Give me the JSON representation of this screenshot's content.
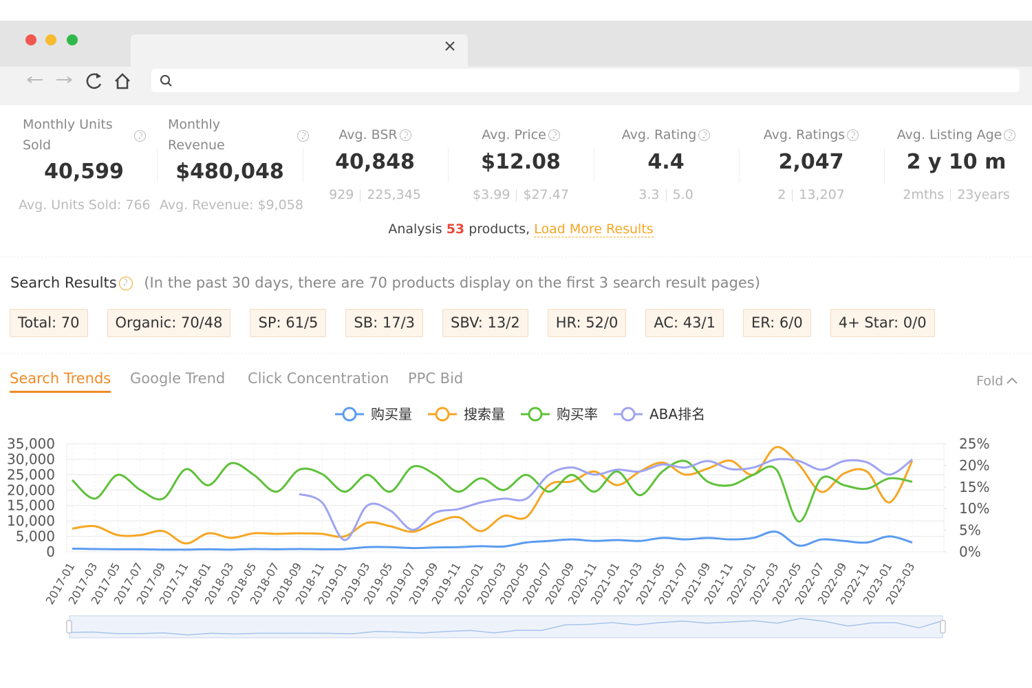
{
  "stats": [
    {
      "label": "Monthly Units Sold",
      "value": "40,599",
      "note": "Avg. Units Sold: 766"
    },
    {
      "label": "Monthly Revenue",
      "value": "$480,048",
      "note": "Avg. Revenue: $9,058"
    },
    {
      "label": "Avg. BSR",
      "value": "40,848",
      "range": [
        "929",
        "225,345"
      ]
    },
    {
      "label": "Avg. Price",
      "value": "$12.08",
      "range": [
        "$3.99",
        "$27.47"
      ]
    },
    {
      "label": "Avg. Rating",
      "value": "4.4",
      "range": [
        "3.3",
        "5.0"
      ]
    },
    {
      "label": "Avg. Ratings",
      "value": "2,047",
      "range": [
        "2",
        "13,207"
      ]
    },
    {
      "label": "Avg. Listing Age",
      "value": "2 y 10 m",
      "range": [
        "2mths",
        "23years"
      ]
    }
  ],
  "analysis": {
    "prefix": "Analysis",
    "count": "53",
    "suffix": "products,",
    "link": "Load More Results"
  },
  "search_results": {
    "title": "Search Results",
    "note": "(In the past 30 days, there are 70 products display on the first 3 search result pages)",
    "tags": [
      "Total: 70",
      "Organic: 70/48",
      "SP: 61/5",
      "SB: 17/3",
      "SBV: 13/2",
      "HR: 52/0",
      "AC: 43/1",
      "ER: 6/0",
      "4+ Star: 0/0"
    ]
  },
  "tabs": [
    "Search Trends",
    "Google Trend",
    "Click Concentration",
    "PPC Bid"
  ],
  "fold": "Fold",
  "chart_data": {
    "type": "line",
    "categories": [
      "2017-01",
      "2017-03",
      "2017-05",
      "2017-07",
      "2017-09",
      "2017-11",
      "2018-01",
      "2018-03",
      "2018-05",
      "2018-07",
      "2018-09",
      "2018-11",
      "2019-01",
      "2019-03",
      "2019-05",
      "2019-07",
      "2019-09",
      "2019-11",
      "2020-01",
      "2020-03",
      "2020-05",
      "2020-07",
      "2020-09",
      "2020-11",
      "2021-01",
      "2021-03",
      "2021-05",
      "2021-07",
      "2021-09",
      "2021-11",
      "2022-01",
      "2022-03",
      "2022-05",
      "2022-07",
      "2022-09",
      "2022-11",
      "2023-01",
      "2023-03"
    ],
    "series": [
      {
        "name": "购买量",
        "color": "#5b9bf0",
        "axis": "y",
        "values": [
          1000,
          900,
          800,
          800,
          700,
          700,
          800,
          700,
          900,
          800,
          900,
          800,
          900,
          1500,
          1500,
          1200,
          1400,
          1500,
          1800,
          1700,
          3000,
          3500,
          4000,
          3500,
          3800,
          3500,
          4500,
          4000,
          4500,
          4000,
          4500,
          6500,
          2000,
          4000,
          3500,
          3000,
          5000,
          3000
        ]
      },
      {
        "name": "搜索量",
        "color": "#f5a623",
        "axis": "y",
        "values": [
          7500,
          8300,
          5400,
          5400,
          6700,
          2700,
          6000,
          4500,
          6000,
          5800,
          6000,
          5800,
          5000,
          9400,
          8300,
          6500,
          9400,
          11200,
          6700,
          11600,
          11200,
          21600,
          22800,
          26000,
          21600,
          26000,
          28900,
          25000,
          27000,
          29500,
          25000,
          33900,
          28300,
          19400,
          25400,
          26000,
          16000,
          29500
        ]
      },
      {
        "name": "购买率",
        "color": "#5ec13a",
        "axis": "y2",
        "values": [
          16.6,
          12.3,
          17.8,
          14.3,
          12.3,
          19.1,
          15.4,
          20.5,
          17.8,
          13.9,
          19,
          18,
          13.9,
          17.8,
          13.9,
          19.7,
          17.8,
          13.9,
          17,
          14.3,
          17.8,
          13.9,
          17.8,
          13.9,
          18.6,
          13.1,
          18.6,
          21,
          16.2,
          15.4,
          17.8,
          19.1,
          7,
          17,
          15.4,
          14.6,
          17,
          16.2
        ]
      },
      {
        "name": "ABA排名",
        "color": "#9ea4f0",
        "axis": "y",
        "values": [
          null,
          null,
          null,
          null,
          null,
          null,
          null,
          null,
          null,
          null,
          18700,
          16000,
          3800,
          15000,
          13400,
          7100,
          12700,
          13800,
          16000,
          17200,
          17200,
          25000,
          27300,
          25000,
          26600,
          26000,
          28300,
          27300,
          29400,
          26800,
          27300,
          29900,
          29400,
          26600,
          29400,
          29000,
          25000,
          29900
        ]
      }
    ],
    "ylim": [
      0,
      35000
    ],
    "yticks": [
      0,
      {
        "value": 5000,
        "label": "5,000"
      },
      {
        "value": 10000,
        "label": "10,000"
      },
      {
        "value": 15000,
        "label": "15,000"
      },
      {
        "value": 20000,
        "label": "20,000"
      },
      {
        "value": 25000,
        "label": "25,000"
      },
      {
        "value": 30000,
        "label": "30,000"
      },
      {
        "value": 35000,
        "label": "35,000"
      }
    ],
    "y2lim": [
      0,
      25
    ],
    "y2ticks": [
      {
        "value": 0,
        "label": "0%"
      },
      {
        "value": 5,
        "label": "5%"
      },
      {
        "value": 10,
        "label": "10%"
      },
      {
        "value": 15,
        "label": "15%"
      },
      {
        "value": 20,
        "label": "20%"
      },
      {
        "value": 25,
        "label": "25%"
      }
    ],
    "grid": true,
    "legend": "top"
  }
}
